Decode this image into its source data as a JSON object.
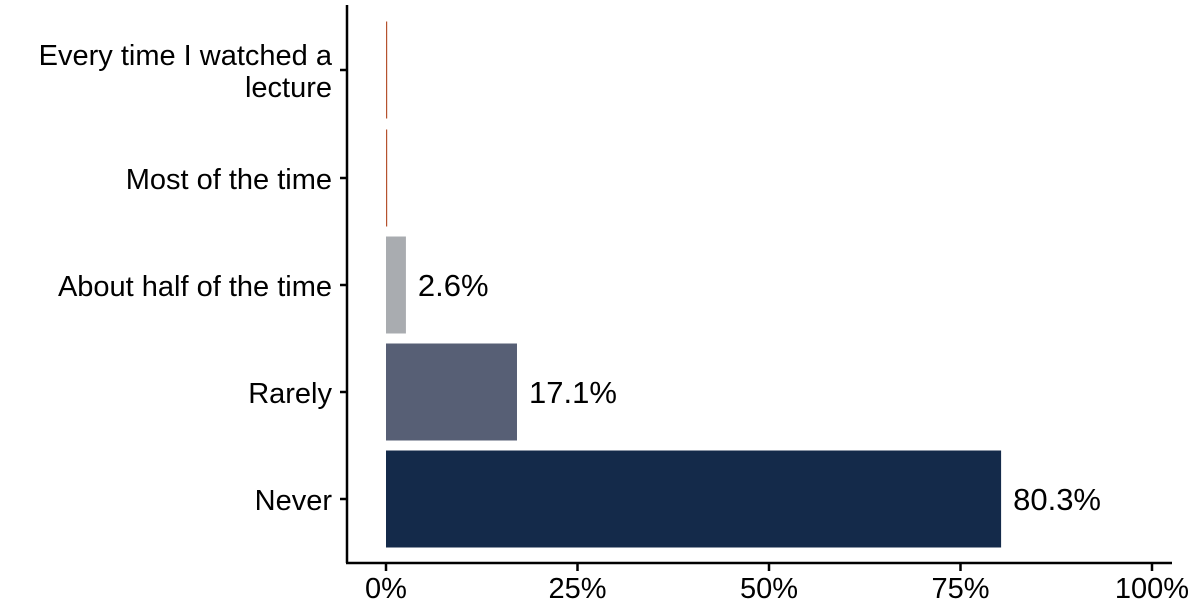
{
  "chart_data": {
    "type": "bar",
    "orientation": "horizontal",
    "categories": [
      "Every time I watched a lecture",
      "Most of the time",
      "About half of the time",
      "Rarely",
      "Never"
    ],
    "category_label_lines": [
      [
        "Every time I watched a",
        "lecture"
      ],
      [
        "Most of the time"
      ],
      [
        "About half of the time"
      ],
      [
        "Rarely"
      ],
      [
        "Never"
      ]
    ],
    "values": [
      0,
      0,
      2.6,
      17.1,
      80.3
    ],
    "data_labels": [
      "",
      "",
      "2.6%",
      "17.1%",
      "80.3%"
    ],
    "colors": [
      "#b5522e",
      "#b5522e",
      "#a9acb0",
      "#575f75",
      "#142a4a"
    ],
    "xlim": [
      0,
      100
    ],
    "xticks": [
      0,
      25,
      50,
      75,
      100
    ],
    "xtick_labels": [
      "0%",
      "25%",
      "50%",
      "75%",
      "100%"
    ],
    "title": "",
    "xlabel": "",
    "ylabel": "",
    "grid": false,
    "legend": "none"
  }
}
